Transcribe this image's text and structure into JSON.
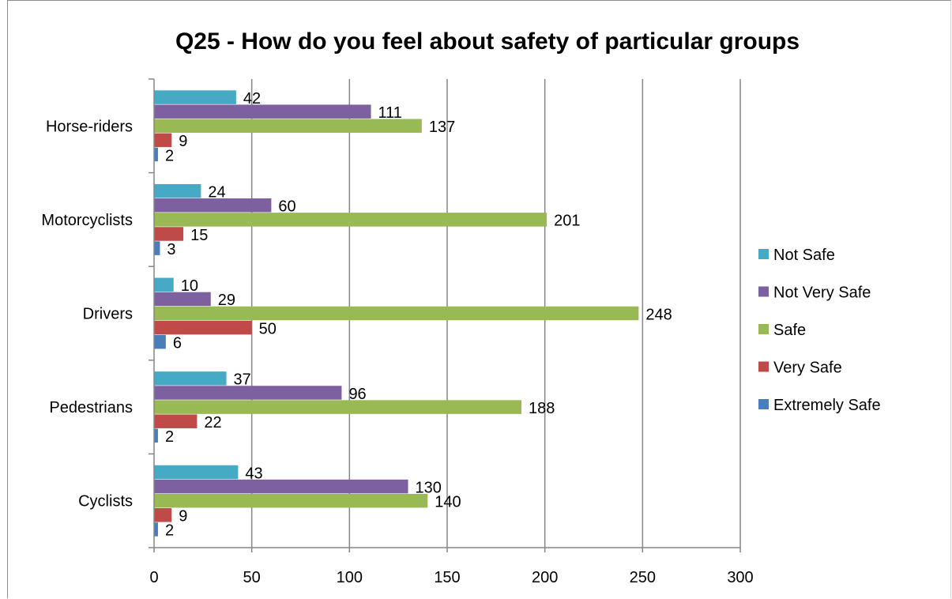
{
  "chart_data": {
    "type": "bar",
    "orientation": "horizontal",
    "title": "Q25 - How do you feel about safety of particular groups",
    "xlabel": "",
    "ylabel": "",
    "xlim": [
      0,
      300
    ],
    "x_ticks": [
      "0",
      "50",
      "100",
      "150",
      "200",
      "250",
      "300"
    ],
    "grid": true,
    "legend_position": "right",
    "categories": [
      "Cyclists",
      "Pedestrians",
      "Drivers",
      "Motorcyclists",
      "Horse-riders"
    ],
    "series": [
      {
        "name": "Extremely Safe",
        "color": "#4a7ebb",
        "values": [
          2,
          2,
          6,
          3,
          2
        ]
      },
      {
        "name": "Very Safe",
        "color": "#be4b48",
        "values": [
          9,
          22,
          50,
          15,
          9
        ]
      },
      {
        "name": "Safe",
        "color": "#98b954",
        "values": [
          140,
          188,
          248,
          201,
          137
        ]
      },
      {
        "name": "Not Very Safe",
        "color": "#7d60a0",
        "values": [
          130,
          96,
          29,
          60,
          111
        ]
      },
      {
        "name": "Not Safe",
        "color": "#46aac5",
        "values": [
          43,
          37,
          10,
          24,
          42
        ]
      }
    ]
  }
}
